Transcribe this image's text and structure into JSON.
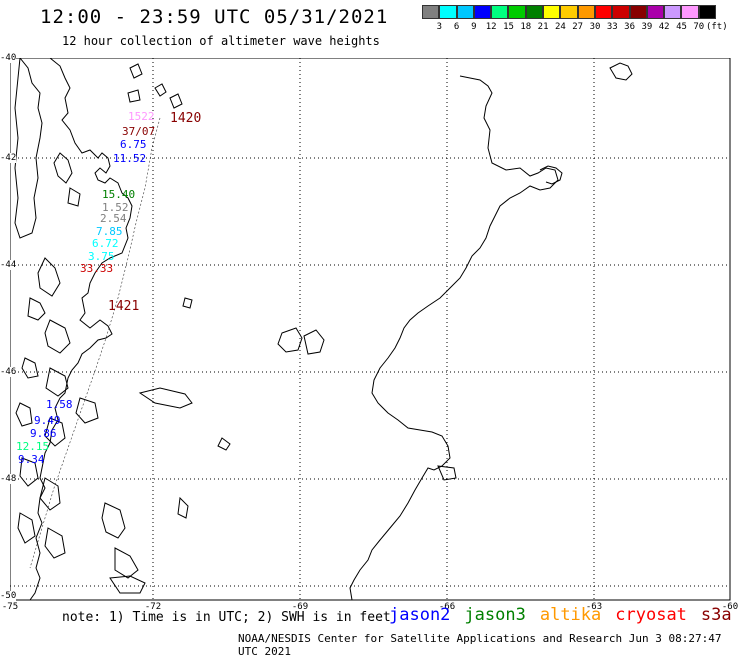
{
  "title": "12:00 - 23:59 UTC 05/31/2021",
  "subtitle": "12 hour collection of altimeter wave heights",
  "scale": {
    "unit": "(ft)",
    "colors": [
      "#808080",
      "#00ffff",
      "#00c8ff",
      "#0000ff",
      "#00ff80",
      "#00cc00",
      "#008000",
      "#ffff00",
      "#ffcc00",
      "#ff9900",
      "#ff0000",
      "#cc0000",
      "#880000",
      "#aa00aa",
      "#cc99ff",
      "#ff99ff",
      "#000000"
    ],
    "labels": [
      "3",
      "6",
      "9",
      "12",
      "15",
      "18",
      "21",
      "24",
      "27",
      "30",
      "33",
      "36",
      "39",
      "42",
      "45",
      "70"
    ]
  },
  "axes": {
    "lat_labels": [
      "-40",
      "-42",
      "-44",
      "-46",
      "-48",
      "-50"
    ],
    "lon_labels": [
      "-75",
      "-72",
      "-69",
      "-66",
      "-63",
      "-60"
    ]
  },
  "observations": [
    {
      "text": "1522",
      "color": "#ff99ff"
    },
    {
      "text": "1420",
      "color": "#880000"
    },
    {
      "text": "37/07",
      "color": "#880000"
    },
    {
      "text": "6.75",
      "color": "#0000ff"
    },
    {
      "text": "11.52",
      "color": "#0000ff"
    },
    {
      "text": "15.40",
      "color": "#008000"
    },
    {
      "text": "1.52",
      "color": "#808080"
    },
    {
      "text": "2.54",
      "color": "#808080"
    },
    {
      "text": "7.85",
      "color": "#00c8ff"
    },
    {
      "text": "6.72",
      "color": "#00ffff"
    },
    {
      "text": "3.75",
      "color": "#00ffff"
    },
    {
      "text": "33.33",
      "color": "#cc0000"
    },
    {
      "text": "1421",
      "color": "#880000"
    },
    {
      "text": "1.58",
      "color": "#0000ff"
    },
    {
      "text": "9.49",
      "color": "#0000ff"
    },
    {
      "text": "9.86",
      "color": "#0000ff"
    },
    {
      "text": "12.15",
      "color": "#00ff80"
    },
    {
      "text": "9.34",
      "color": "#0000ff"
    }
  ],
  "footer": {
    "note": "note: 1) Time is in UTC; 2) SWH is in feet",
    "credit": "NOAA/NESDIS Center for Satellite Applications and Research   Jun  3 08:27:47 UTC 2021",
    "satellites": [
      {
        "name": "jason2",
        "color": "#0000ff"
      },
      {
        "name": "jason3",
        "color": "#008000"
      },
      {
        "name": "altika",
        "color": "#ff9900"
      },
      {
        "name": "cryosat",
        "color": "#ff0000"
      },
      {
        "name": "s3a",
        "color": "#880000"
      }
    ]
  }
}
